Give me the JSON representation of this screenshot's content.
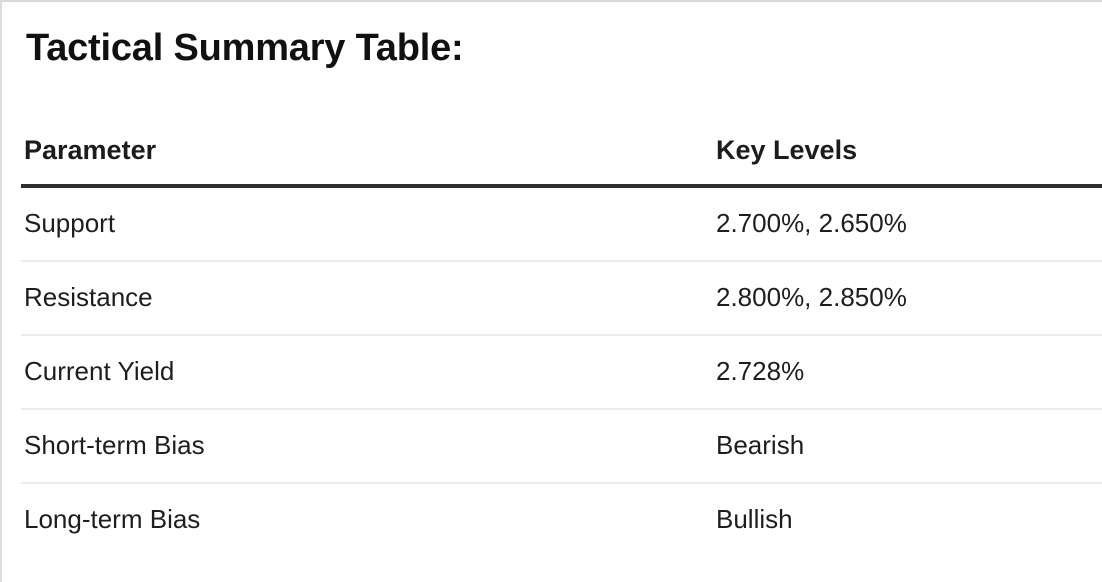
{
  "page": {
    "title": "Tactical Summary Table:"
  },
  "table": {
    "columns": [
      {
        "key": "parameter",
        "label": "Parameter"
      },
      {
        "key": "key_levels",
        "label": "Key Levels"
      }
    ],
    "rows": [
      {
        "parameter": "Support",
        "key_levels": "2.700%, 2.650%"
      },
      {
        "parameter": "Resistance",
        "key_levels": "2.800%, 2.850%"
      },
      {
        "parameter": "Current Yield",
        "key_levels": "2.728%"
      },
      {
        "parameter": "Short-term Bias",
        "key_levels": "Bearish"
      },
      {
        "parameter": "Long-term Bias",
        "key_levels": "Bullish"
      }
    ]
  },
  "colors": {
    "text": "#1c1c1c",
    "header_rule": "#2e2e2e",
    "row_rule": "#ececec",
    "frame_border": "#d9d9d9",
    "background": "#ffffff"
  }
}
